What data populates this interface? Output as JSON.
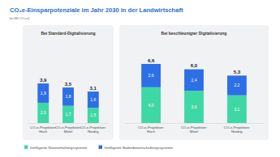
{
  "title": "CO₂e-Einsparpotenziale im Jahr 2030 in der Landwirtschaft",
  "subtitle": "[in Mt CO₂e]",
  "chart_data": [
    {
      "type": "bar",
      "stacked": true,
      "data_labels": true,
      "tick_labels": "x",
      "legend": "bottom-left",
      "title": "Bei Standard-Digitalisierung",
      "categories": [
        "CO₂e-Projektion: Hoch",
        "CO₂e-Projektion: Mittel",
        "CO₂e-Projektion: Niedrig"
      ],
      "ylim": [
        0,
        7.5
      ],
      "series": [
        {
          "name": "Intelligente Nutztierhaltungssysteme",
          "color": "#3fd8a4",
          "values": [
            2.0,
            1.7,
            1.5
          ],
          "value_labels": [
            "2,0",
            "1,7",
            "1,5"
          ]
        },
        {
          "name": "Intelligente Bodenbewirtschaftungssysteme",
          "color": "#2d6fe6",
          "values": [
            1.9,
            1.8,
            1.6
          ],
          "value_labels": [
            "1,9",
            "1,8",
            "1,6"
          ]
        }
      ],
      "totals": [
        3.9,
        3.5,
        3.1
      ],
      "total_labels": [
        "3,9",
        "3,5",
        "3,1"
      ]
    },
    {
      "type": "bar",
      "stacked": true,
      "data_labels": true,
      "tick_labels": "x",
      "title": "Bei beschleunigter Digitalisierung",
      "categories": [
        "CO₂e-Projektion: Hoch",
        "CO₂e-Projektion: Mittel",
        "CO₂e-Projektion: Niedrig"
      ],
      "ylim": [
        0,
        8.5
      ],
      "series": [
        {
          "color": "#3fd8a4",
          "values": [
            4.0,
            3.6,
            3.1
          ],
          "value_labels": [
            "4,0",
            "3,6",
            "3,1"
          ]
        },
        {
          "color": "#2d6fe6",
          "values": [
            2.6,
            2.4,
            2.2
          ],
          "value_labels": [
            "2,6",
            "2,4",
            "2,2"
          ]
        }
      ],
      "totals": [
        6.6,
        6.0,
        5.3
      ],
      "total_labels": [
        "6,6",
        "6,0",
        "5,3"
      ]
    }
  ]
}
